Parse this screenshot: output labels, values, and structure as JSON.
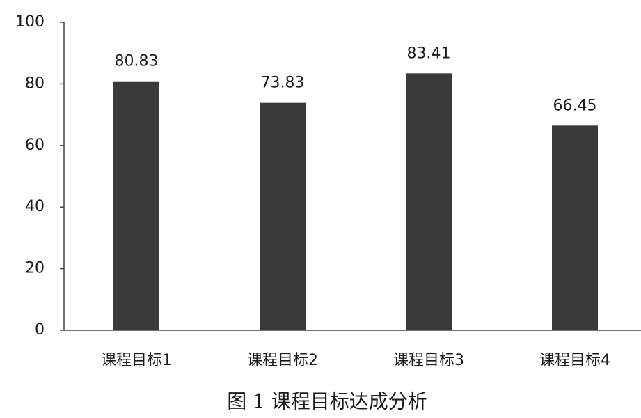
{
  "chart_data": {
    "type": "bar",
    "caption": "图 1 课程目标达成分析",
    "categories": [
      "课程目标1",
      "课程目标2",
      "课程目标3",
      "课程目标4"
    ],
    "values": [
      80.83,
      73.83,
      83.41,
      66.45
    ],
    "color": "#3a3a3a",
    "ylim": [
      0,
      100
    ],
    "yticks": [
      0,
      20,
      40,
      60,
      80,
      100
    ],
    "grid": false
  }
}
